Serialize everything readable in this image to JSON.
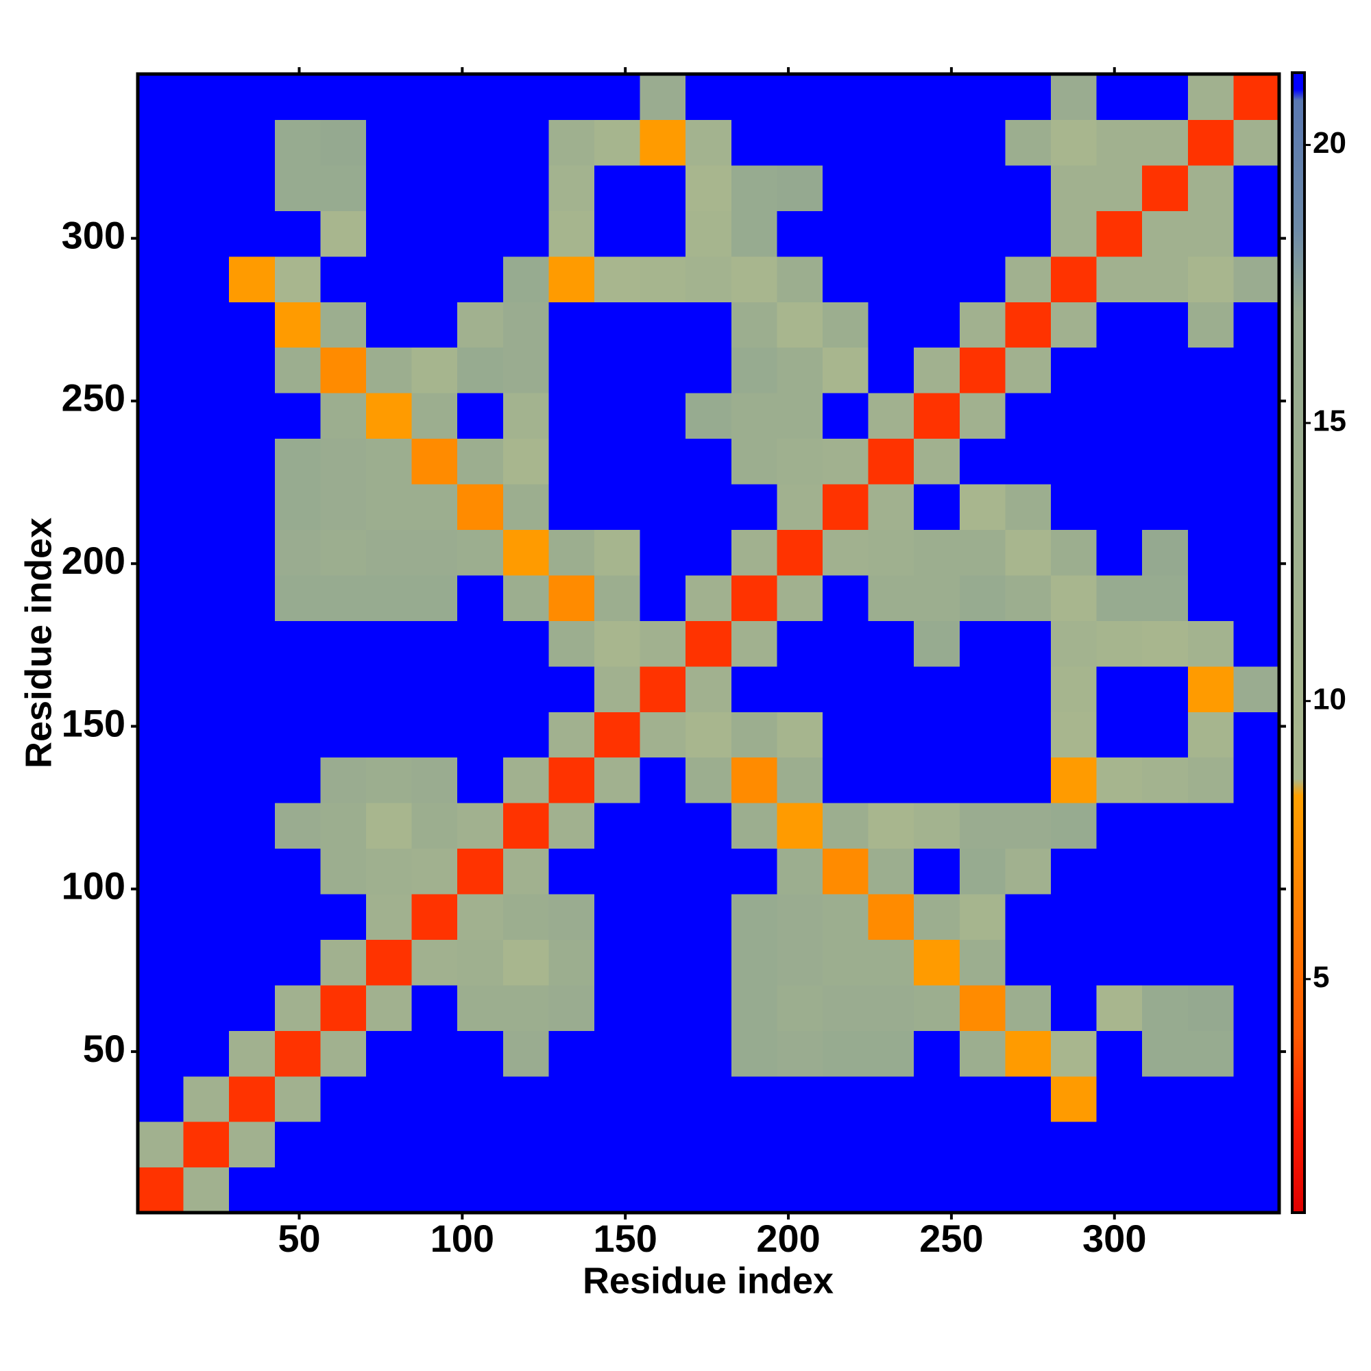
{
  "chart_data": {
    "type": "heatmap",
    "xlabel": "Residue index",
    "ylabel": "Residue index",
    "x_bins": [
      0.5,
      14.5,
      28.5,
      42.5,
      56.5,
      70.5,
      84.5,
      98.5,
      112.5,
      126.5,
      140.5,
      154.5,
      168.5,
      182.5,
      196.5,
      210.5,
      224.5,
      238.5,
      252.5,
      266.5,
      280.5,
      294.5,
      308.5,
      322.5,
      336.5,
      350.5
    ],
    "y_bins": [
      0.5,
      14.5,
      28.5,
      42.5,
      56.5,
      70.5,
      84.5,
      98.5,
      112.5,
      126.5,
      140.5,
      154.5,
      168.5,
      182.5,
      196.5,
      210.5,
      224.5,
      238.5,
      252.5,
      266.5,
      280.5,
      294.5,
      308.5,
      322.5,
      336.5,
      350.5
    ],
    "xlim": [
      0.5,
      350.5
    ],
    "ylim": [
      0.5,
      350.5
    ],
    "xticks": [
      50,
      100,
      150,
      200,
      250,
      300
    ],
    "yticks": [
      50,
      100,
      150,
      200,
      250,
      300
    ],
    "z": [
      [
        3,
        12,
        21,
        21,
        21,
        21,
        21,
        21,
        21,
        21,
        21,
        21,
        21,
        21,
        21,
        21,
        21,
        21,
        21,
        21,
        21,
        21,
        21,
        21,
        21
      ],
      [
        12,
        3,
        12,
        21,
        21,
        21,
        21,
        21,
        21,
        21,
        21,
        21,
        21,
        21,
        21,
        21,
        21,
        21,
        21,
        21,
        21,
        21,
        21,
        21,
        21
      ],
      [
        21,
        12,
        3,
        12,
        21,
        21,
        21,
        21,
        21,
        21,
        21,
        21,
        21,
        21,
        21,
        21,
        21,
        21,
        21,
        21,
        8,
        21,
        21,
        21,
        21
      ],
      [
        21,
        21,
        12,
        3,
        12,
        21,
        21,
        21,
        15,
        21,
        21,
        21,
        21,
        16,
        15,
        16,
        16,
        21,
        14,
        8,
        9,
        21,
        16,
        16,
        21
      ],
      [
        21,
        21,
        21,
        12,
        3,
        12,
        21,
        14,
        14,
        15,
        21,
        21,
        21,
        16,
        14,
        15,
        15,
        14,
        7,
        14,
        21,
        9,
        16,
        17,
        21
      ],
      [
        21,
        21,
        21,
        21,
        12,
        3,
        12,
        13,
        9,
        14,
        21,
        21,
        21,
        16,
        15,
        14,
        14,
        8,
        14,
        21,
        21,
        21,
        21,
        21,
        21
      ],
      [
        21,
        21,
        21,
        21,
        21,
        12,
        3,
        12,
        14,
        15,
        21,
        21,
        21,
        16,
        15,
        14,
        7,
        14,
        10,
        21,
        21,
        21,
        21,
        21,
        21
      ],
      [
        21,
        21,
        21,
        21,
        14,
        13,
        12,
        3,
        12,
        21,
        21,
        21,
        21,
        21,
        14,
        7,
        14,
        21,
        16,
        12,
        21,
        21,
        21,
        21,
        21
      ],
      [
        21,
        21,
        21,
        15,
        14,
        9,
        14,
        12,
        3,
        12,
        21,
        21,
        21,
        14,
        8,
        14,
        9,
        11,
        15,
        15,
        16,
        21,
        21,
        21,
        21
      ],
      [
        21,
        21,
        21,
        21,
        15,
        14,
        15,
        21,
        12,
        3,
        12,
        21,
        14,
        7,
        14,
        21,
        21,
        21,
        21,
        21,
        8,
        10,
        11,
        13,
        21
      ],
      [
        21,
        21,
        21,
        21,
        21,
        21,
        21,
        21,
        21,
        12,
        3,
        12,
        9,
        14,
        10,
        21,
        21,
        21,
        21,
        21,
        9,
        21,
        21,
        10,
        21
      ],
      [
        21,
        21,
        21,
        21,
        21,
        21,
        21,
        21,
        21,
        21,
        12,
        3,
        12,
        21,
        21,
        21,
        21,
        21,
        21,
        21,
        10,
        21,
        21,
        8,
        15
      ],
      [
        21,
        21,
        21,
        21,
        21,
        21,
        21,
        21,
        21,
        14,
        9,
        12,
        3,
        12,
        21,
        21,
        21,
        16,
        21,
        21,
        11,
        10,
        9,
        11,
        21
      ],
      [
        21,
        21,
        21,
        16,
        16,
        16,
        16,
        21,
        14,
        7,
        14,
        21,
        12,
        3,
        12,
        21,
        14,
        14,
        16,
        14,
        9,
        16,
        16,
        21,
        21
      ],
      [
        21,
        21,
        21,
        15,
        14,
        15,
        15,
        14,
        8,
        14,
        10,
        21,
        21,
        12,
        3,
        12,
        13,
        14,
        14,
        9,
        14,
        21,
        17,
        21,
        21
      ],
      [
        21,
        21,
        21,
        16,
        15,
        14,
        14,
        7,
        14,
        21,
        21,
        21,
        21,
        21,
        12,
        3,
        12,
        21,
        9,
        14,
        21,
        21,
        21,
        21,
        21
      ],
      [
        21,
        21,
        21,
        16,
        15,
        14,
        7,
        14,
        9,
        21,
        21,
        21,
        21,
        14,
        13,
        12,
        3,
        12,
        21,
        21,
        21,
        21,
        21,
        21,
        21
      ],
      [
        21,
        21,
        21,
        21,
        14,
        8,
        14,
        21,
        11,
        21,
        21,
        21,
        16,
        14,
        14,
        21,
        12,
        3,
        12,
        21,
        21,
        21,
        21,
        21,
        21
      ],
      [
        21,
        21,
        21,
        14,
        7,
        14,
        10,
        16,
        15,
        21,
        21,
        21,
        21,
        16,
        14,
        9,
        21,
        12,
        3,
        12,
        21,
        21,
        21,
        21,
        21
      ],
      [
        21,
        21,
        21,
        8,
        14,
        21,
        21,
        12,
        15,
        21,
        21,
        21,
        21,
        14,
        9,
        14,
        21,
        21,
        12,
        3,
        12,
        21,
        21,
        14,
        21
      ],
      [
        21,
        21,
        8,
        9,
        21,
        21,
        21,
        21,
        16,
        8,
        9,
        10,
        11,
        9,
        14,
        21,
        21,
        21,
        21,
        12,
        3,
        12,
        12,
        9,
        15
      ],
      [
        21,
        21,
        21,
        21,
        9,
        21,
        21,
        21,
        21,
        10,
        21,
        21,
        10,
        16,
        21,
        21,
        21,
        21,
        21,
        21,
        12,
        3,
        12,
        12,
        21
      ],
      [
        21,
        21,
        21,
        16,
        16,
        21,
        21,
        21,
        21,
        11,
        21,
        21,
        9,
        16,
        17,
        21,
        21,
        21,
        21,
        21,
        12,
        12,
        3,
        12,
        21
      ],
      [
        21,
        21,
        21,
        16,
        17,
        21,
        21,
        21,
        21,
        13,
        10,
        8,
        11,
        21,
        21,
        21,
        21,
        21,
        21,
        14,
        9,
        12,
        12,
        3,
        12
      ],
      [
        21,
        21,
        21,
        21,
        21,
        21,
        21,
        21,
        21,
        21,
        21,
        15,
        21,
        21,
        21,
        21,
        21,
        21,
        21,
        21,
        15,
        21,
        21,
        12,
        3
      ]
    ],
    "zlim": [
      0.8,
      21.3
    ],
    "colorbar_ticks": [
      5,
      10,
      15,
      20
    ],
    "colorscale": [
      [
        0.8,
        "#e00000"
      ],
      [
        2.5,
        "#ff2000"
      ],
      [
        4,
        "#ff5a00"
      ],
      [
        8.3,
        "#ffa000"
      ],
      [
        8.6,
        "#a9b78e"
      ],
      [
        17,
        "#95a990"
      ],
      [
        18.5,
        "#6d8aa8"
      ],
      [
        20.8,
        "#5a78b0"
      ],
      [
        21,
        "#0000ff"
      ],
      [
        21.3,
        "#0000ff"
      ]
    ]
  }
}
